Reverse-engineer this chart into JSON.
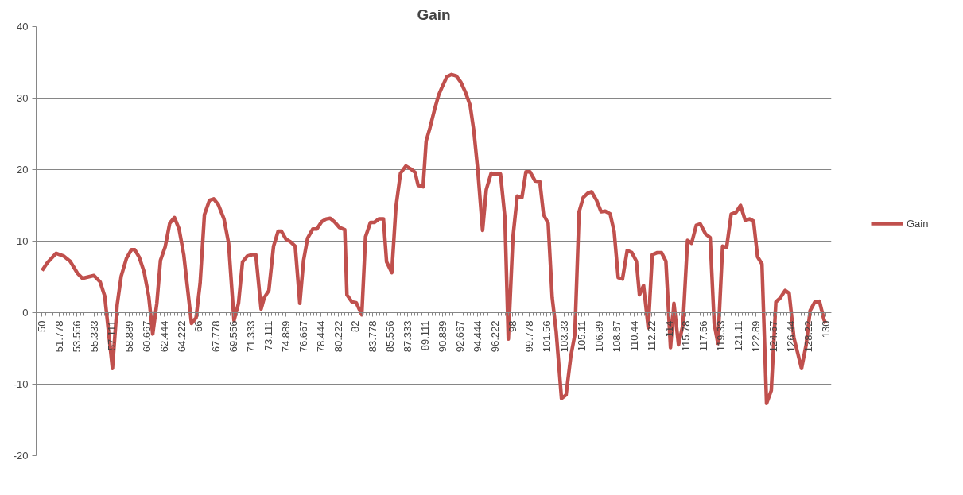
{
  "chart_data": {
    "type": "line",
    "title": "Gain",
    "xlim": [
      49.4,
      130.6
    ],
    "ylim": [
      -20,
      40
    ],
    "yticks": [
      -20,
      -10,
      0,
      10,
      20,
      30,
      40
    ],
    "xticks": [
      50,
      51.778,
      53.556,
      55.333,
      57.111,
      58.889,
      60.667,
      62.444,
      64.222,
      66,
      67.778,
      69.556,
      71.333,
      73.111,
      74.889,
      76.667,
      78.444,
      80.222,
      82,
      83.778,
      85.556,
      87.333,
      89.111,
      90.889,
      92.667,
      94.444,
      96.222,
      98,
      99.778,
      {
        "value": 101.556,
        "label": "101.56"
      },
      {
        "value": 103.333,
        "label": "103.33"
      },
      {
        "value": 105.111,
        "label": "105.11"
      },
      {
        "value": 106.889,
        "label": "106.89"
      },
      {
        "value": 108.667,
        "label": "108.67"
      },
      {
        "value": 110.444,
        "label": "110.44"
      },
      {
        "value": 112.222,
        "label": "112.22"
      },
      114,
      {
        "value": 115.778,
        "label": "115.78"
      },
      {
        "value": 117.556,
        "label": "117.56"
      },
      {
        "value": 119.333,
        "label": "119.33"
      },
      {
        "value": 121.111,
        "label": "121.11"
      },
      {
        "value": 122.889,
        "label": "122.89"
      },
      {
        "value": 124.667,
        "label": "124.67"
      },
      {
        "value": 126.444,
        "label": "126.44"
      },
      {
        "value": 128.222,
        "label": "128.22"
      },
      130
    ],
    "grid": "y",
    "legend": "right",
    "marker": "none",
    "line_style": "solid",
    "series": [
      {
        "name": "Gain",
        "color": "#c0504d",
        "x": [
          50,
          50.55,
          51.44,
          52.23,
          52.86,
          53.62,
          54.13,
          55.3,
          55.93,
          56.4,
          57.19,
          57.67,
          58.08,
          58.62,
          59.12,
          59.47,
          59.94,
          60.42,
          60.89,
          61.3,
          61.72,
          62.09,
          62.57,
          63.04,
          63.52,
          63.99,
          64.47,
          65.26,
          65.73,
          66.14,
          66.58,
          67.09,
          67.53,
          68.0,
          68.58,
          69.05,
          69.6,
          70.06,
          70.47,
          70.95,
          71.42,
          71.83,
          72.37,
          72.69,
          73.16,
          73.64,
          74.11,
          74.43,
          74.9,
          75.37,
          75.85,
          76.32,
          76.7,
          77.11,
          77.65,
          78.06,
          78.54,
          79.01,
          79.42,
          79.86,
          80.37,
          80.91,
          81.13,
          81.64,
          82.08,
          82.65,
          83.03,
          83.53,
          83.91,
          84.39,
          84.86,
          85.18,
          85.71,
          86.13,
          86.6,
          87.14,
          87.64,
          88.09,
          88.4,
          88.91,
          89.22,
          89.6,
          90.08,
          90.49,
          90.8,
          91.34,
          91.82,
          92.29,
          92.77,
          93.24,
          93.71,
          94.09,
          94.5,
          94.98,
          95.36,
          95.86,
          96.31,
          96.81,
          97.26,
          97.61,
          98.08,
          98.52,
          99.0,
          99.41,
          99.82,
          100.35,
          100.83,
          101.21,
          101.68,
          102.09,
          102.5,
          103.04,
          103.51,
          103.99,
          104.4,
          104.84,
          105.26,
          105.73,
          106.11,
          106.62,
          107.09,
          107.5,
          108.01,
          108.42,
          108.83,
          109.27,
          109.75,
          110.22,
          110.69,
          111.0,
          111.42,
          111.9,
          112.31,
          112.84,
          113.25,
          113.7,
          114.17,
          114.52,
          114.99,
          115.44,
          115.91,
          116.32,
          116.8,
          117.21,
          117.75,
          118.22,
          118.63,
          119.01,
          119.49,
          119.9,
          120.37,
          120.85,
          121.32,
          121.8,
          122.24,
          122.65,
          123.06,
          123.51,
          123.98,
          124.46,
          124.93,
          125.34,
          125.88,
          126.29,
          126.77,
          127.55,
          128.02,
          128.43,
          128.91,
          129.38,
          129.83,
          130
        ],
        "values": [
          5.9,
          7.0,
          8.3,
          7.9,
          7.2,
          5.5,
          4.8,
          5.2,
          4.3,
          2.3,
          -7.8,
          1.1,
          5.1,
          7.6,
          8.8,
          8.8,
          7.7,
          5.7,
          2.3,
          -3.0,
          1.3,
          7.3,
          9.2,
          12.5,
          13.3,
          11.7,
          8.1,
          -1.5,
          -0.7,
          4.1,
          13.7,
          15.7,
          15.9,
          15.1,
          13.1,
          9.7,
          -1.1,
          1.3,
          7.1,
          7.9,
          8.1,
          8.1,
          0.5,
          2.1,
          3.1,
          9.3,
          11.4,
          11.4,
          10.3,
          9.9,
          9.3,
          1.3,
          7.3,
          10.4,
          11.7,
          11.7,
          12.7,
          13.1,
          13.2,
          12.7,
          11.9,
          11.6,
          2.5,
          1.5,
          1.4,
          -0.3,
          10.6,
          12.6,
          12.6,
          13.1,
          13.1,
          7.1,
          5.6,
          14.7,
          19.5,
          20.5,
          20.1,
          19.6,
          17.8,
          17.6,
          24.0,
          25.8,
          28.4,
          30.4,
          31.4,
          33.0,
          33.3,
          33.1,
          32.2,
          30.8,
          29.0,
          25.4,
          19.8,
          11.5,
          17.2,
          19.5,
          19.4,
          19.4,
          13.3,
          -3.7,
          10.5,
          16.3,
          16.1,
          19.7,
          19.7,
          18.4,
          18.3,
          13.7,
          12.5,
          2.1,
          -2.7,
          -12.0,
          -11.5,
          -6.1,
          -3.1,
          14.1,
          16.1,
          16.7,
          16.9,
          15.7,
          14.1,
          14.2,
          13.8,
          11.3,
          4.9,
          4.7,
          8.7,
          8.4,
          7.2,
          2.5,
          3.8,
          -2.1,
          8.1,
          8.4,
          8.4,
          7.2,
          -4.9,
          1.3,
          -4.5,
          -1.7,
          10.1,
          9.7,
          12.2,
          12.4,
          11.0,
          10.5,
          -1.5,
          -4.3,
          9.3,
          9.1,
          13.8,
          14.0,
          15.0,
          12.9,
          13.1,
          12.8,
          7.8,
          6.8,
          -12.7,
          -10.9,
          1.5,
          2.0,
          3.1,
          2.7,
          -3.5,
          -7.8,
          -4.5,
          0.3,
          1.5,
          1.6,
          -0.9,
          -1.5
        ]
      }
    ]
  }
}
